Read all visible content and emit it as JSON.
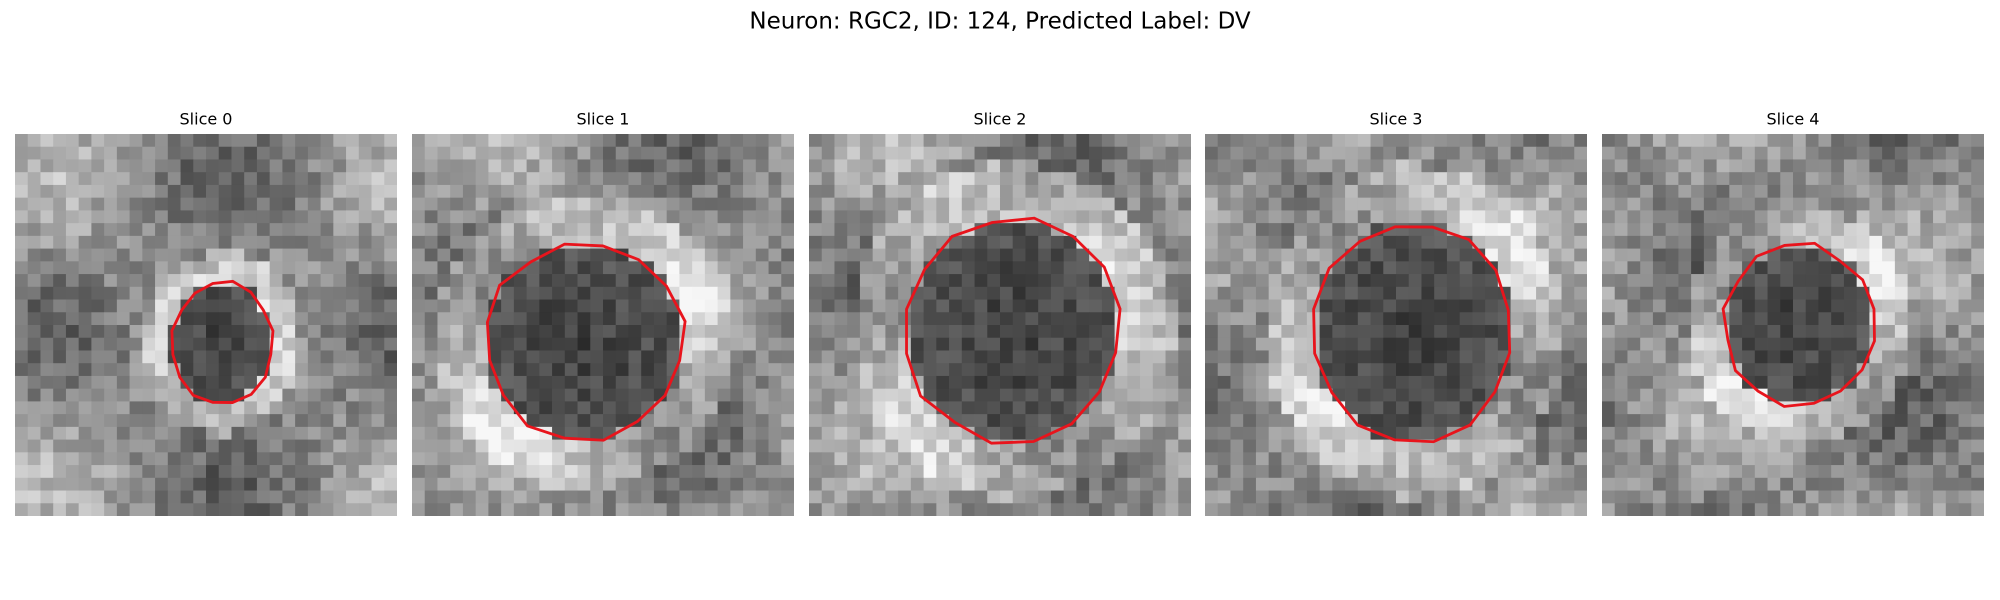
{
  "title": "Neuron: RGC2, ID: 124, Predicted Label: DV",
  "panels": [
    {
      "title": "Slice 0"
    },
    {
      "title": "Slice 1"
    },
    {
      "title": "Slice 2"
    },
    {
      "title": "Slice 3"
    },
    {
      "title": "Slice 4"
    }
  ]
}
